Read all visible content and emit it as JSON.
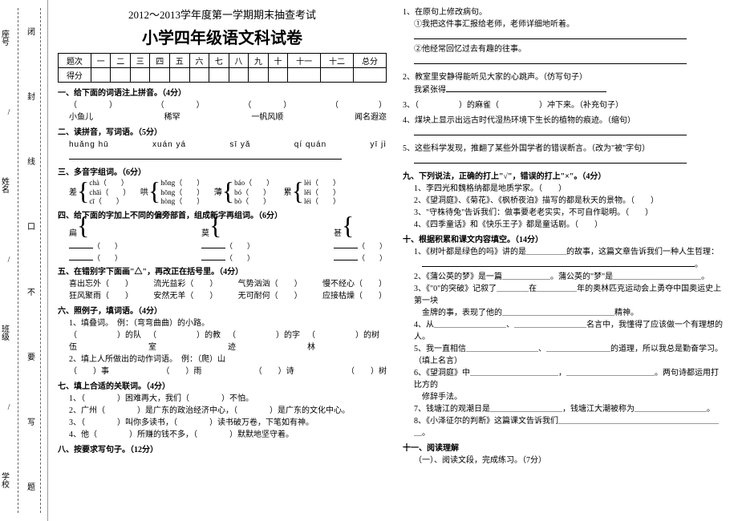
{
  "binding": {
    "left_col": [
      "学校",
      "班级",
      "姓名",
      "座号"
    ],
    "mid_col": [
      "题",
      "写",
      "要",
      "不",
      "口",
      "线",
      "封",
      "闭"
    ],
    "slashes": "/ / / / / / / / / / / / / / / / / / / / / / / / / / / / / / / / / / /"
  },
  "header": {
    "line1": "2012～2013学年度第一学期期末抽查考试",
    "line2": "小学四年级语文科试卷"
  },
  "score_table": {
    "row1": [
      "题次",
      "一",
      "二",
      "三",
      "四",
      "五",
      "六",
      "七",
      "八",
      "九",
      "十",
      "十一",
      "十二",
      "总分"
    ],
    "row2_label": "得分"
  },
  "left": {
    "s1": {
      "title": "一、给下面的词语注上拼音。（4分）",
      "words": [
        "小鱼儿",
        "稀罕",
        "一帆风顺",
        "闻名遐迩"
      ]
    },
    "s2": {
      "title": "二、读拼音，写词语。（5分）",
      "pinyin": [
        "huǎng hū",
        "xuán yá",
        "sī yǎ",
        "qí quán",
        "yī jì"
      ]
    },
    "s3": {
      "title": "三、多音字组词。（6分）",
      "chars": [
        "差",
        "哄",
        "薄",
        "累"
      ],
      "py": [
        [
          "chà",
          "chāi",
          "cī"
        ],
        [
          "hǒng",
          "hōng",
          "hòng"
        ],
        [
          "báo",
          "bó",
          "bò"
        ],
        [
          "lèi",
          "lěi",
          "léi"
        ]
      ]
    },
    "s4": {
      "title": "四、给下面的字加上不同的偏旁部首，组成新字再组词。（6分）",
      "chars": [
        "扁",
        "莫",
        "甚"
      ]
    },
    "s5": {
      "title": "五、在错别字下面画\"△\"，再改正在括号里。（4分）",
      "items": [
        "喜出忘外（　　）",
        "流光益彩（　　）",
        "气势汹汹（　　）",
        "慢不经心（　　）",
        "狂风聚雨（　　）",
        "安然无羊（　　）",
        "无可耐何（　　）",
        "应接枯燥（　　）"
      ]
    },
    "s6": {
      "title": "六、照例子，填词语。（4分）",
      "l1": "1、填叠词。　例：（弯弯曲曲）的小路。",
      "l2a": "（　　　　　）的队伍",
      "l2b": "（　　　　　）的教室",
      "l2c": "（　　　　　）的字迹",
      "l2d": "（　　　　　）的树林",
      "l3": "2、填上人所做出的动作词语。　例：（爬）山",
      "l4a": "（　　）事",
      "l4b": "（　　）雨",
      "l4c": "（　　）诗",
      "l4d": "（　　）树"
    },
    "s7": {
      "title": "七、填上合适的关联词。（4分）",
      "items": [
        "1、（　　　　）困难再大，我们（　　　　）不怕。",
        "2、广州（　　　　）是广东的政治经济中心，（　　　　）是广东的文化中心。",
        "3、（　　　　）叫你多读书，（　　　　）读书破万卷，下笔如有神。",
        "4、他（　　　　）所赚的钱不多，（　　　　）默默地坚守着。"
      ]
    },
    "s8": "八、按要求写句子。（12分）"
  },
  "right": {
    "q1": "1、在原句上修改病句。",
    "q1a": "①我把这件事汇报给老师，老师详细地听着。",
    "q1b": "②他经常回忆过去有趣的往事。",
    "q2": "2、教室里安静得能听见大家的心跳声。（仿写句子）",
    "q2a": "我紧张得",
    "q3": "3、（　　　　　）的麻雀（　　　　　）冲下来。（补充句子）",
    "q4": "4、煤块上显示出远古时代湿热环境下生长的植物的痕迹。（缩句）",
    "q5": "5、这些科学发现，推翻了某些外国学者的错误断言。（改为\"被\"字句）",
    "s9": {
      "title": "九、下列说法，正确的打上\"√\"，错误的打上\"×\"。（4分）",
      "items": [
        "1、李四光和魏格纳都是地质学家。（　　）",
        "2、《望洞庭》、《菊花》、《枫桥夜泊》描写的都是秋天的景物。（　　）",
        "3、\"守株待兔\"告诉我们：做事要老老实实，不可自作聪明。（　　）",
        "4、《四季童话》和《快乐王子》都是童话剧。（　　）"
      ]
    },
    "s10": {
      "title": "十、根据积累和课文内容填空。（14分）",
      "l1": "1、《树叶都是绿色的吗》讲的是＿＿＿＿＿的故事，这篇文章告诉我们一种人生哲理：",
      "l2": "2、《蒲公英的梦》是一篇＿＿＿＿＿＿。蒲公英的\"梦\"是＿＿＿＿＿＿＿＿＿＿＿。",
      "l3": "3、《\"0\"的突破》记叙了＿＿＿＿在＿＿＿＿＿年的奥林匹克运动会上勇夺中国奥运史上第一块",
      "l3b": "金牌的事，表现了他的＿＿＿＿＿＿＿＿＿＿＿＿＿＿精神。",
      "l4": "4、从＿＿＿＿＿＿＿＿＿、＿＿＿＿＿＿＿＿＿名言中，我懂得了应该做一个有理想的人。",
      "l5": "5、我一直相信＿＿＿＿＿＿＿＿＿、＿＿＿＿＿＿＿＿的道理，所以我总是勤奋学习。（填上名言）",
      "l6": "6、《望洞庭》中＿＿＿＿＿＿＿＿＿＿＿，＿＿＿＿＿＿＿＿＿＿＿。两句诗都运用打比方的",
      "l6b": "修辞手法。",
      "l7": "7、钱塘江的观潮日是＿＿＿＿＿＿＿＿＿，钱塘江大潮被称为＿＿＿＿＿＿＿＿＿。",
      "l8": "8、《小泽征尔的判断》这篇课文告诉我们＿＿＿＿＿＿＿＿＿＿＿＿＿＿＿＿＿＿＿＿＿。"
    },
    "s11": {
      "title": "十一、阅读理解",
      "sub": "（一）、阅读文段，完成练习。（7分）"
    }
  }
}
